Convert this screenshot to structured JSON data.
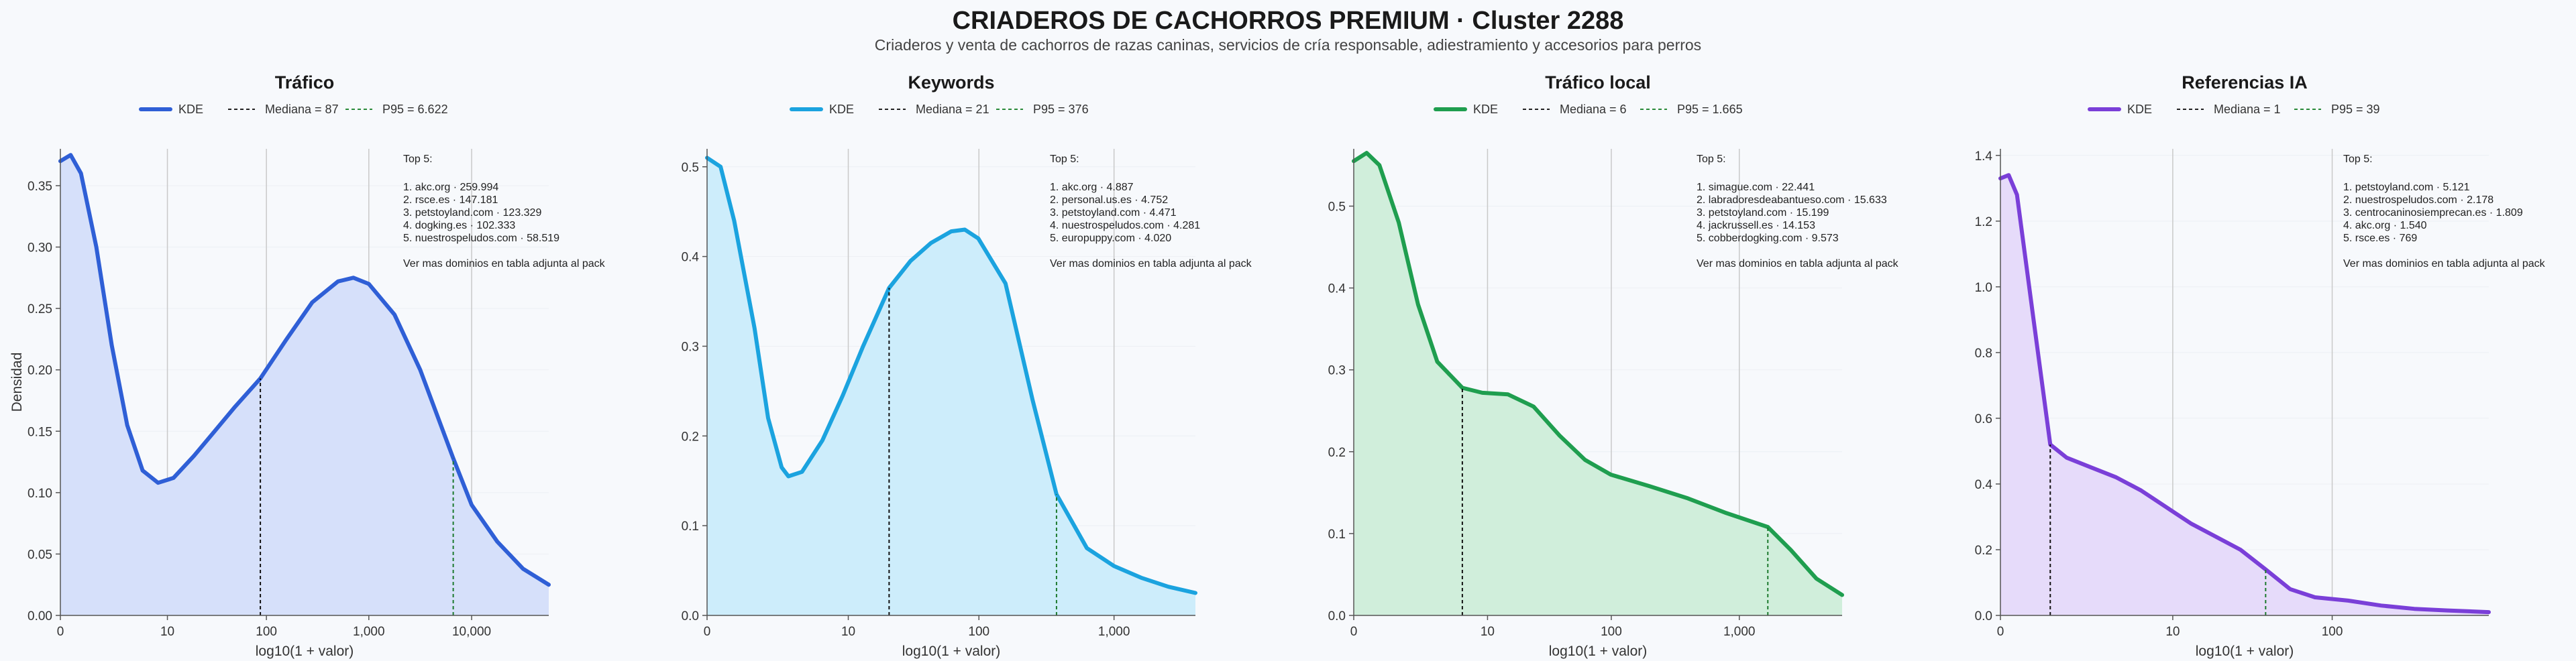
{
  "header": {
    "title": "CRIADEROS DE CACHORROS PREMIUM · Cluster 2288",
    "subtitle": "Criaderos y venta de cachorros de razas caninas, servicios de cría responsable, adiestramiento y accesorios para perros"
  },
  "legend": {
    "kde": "KDE"
  },
  "top_label": "Top 5:",
  "footer_note": "Ver mas dominios en tabla adjunta al pack",
  "chart_data": [
    {
      "type": "area",
      "title": "Tráfico",
      "xlabel": "log10(1 + valor)",
      "ylabel": "Densidad",
      "color": "#2f5fd6",
      "fill": "#d6e0fa",
      "xlim": [
        0,
        4.75
      ],
      "ylim": [
        0,
        0.38
      ],
      "xticks": [
        {
          "v": 0,
          "label": "0"
        },
        {
          "v": 1.041,
          "label": "10"
        },
        {
          "v": 2.004,
          "label": "100"
        },
        {
          "v": 3.0,
          "label": "1,000"
        },
        {
          "v": 4.0,
          "label": "10,000"
        }
      ],
      "yticks": [
        0,
        0.05,
        0.1,
        0.15,
        0.2,
        0.25,
        0.3,
        0.35
      ],
      "ytick_labels": [
        "0.00",
        "0.05",
        "0.10",
        "0.15",
        "0.20",
        "0.25",
        "0.30",
        "0.35"
      ],
      "median": {
        "label": "Mediana = 87",
        "x": 1.945
      },
      "p95": {
        "label": "P95 = 6.622",
        "x": 3.821
      },
      "curve": [
        [
          0,
          0.37
        ],
        [
          0.1,
          0.375
        ],
        [
          0.2,
          0.36
        ],
        [
          0.35,
          0.3
        ],
        [
          0.5,
          0.22
        ],
        [
          0.65,
          0.155
        ],
        [
          0.8,
          0.118
        ],
        [
          0.95,
          0.108
        ],
        [
          1.1,
          0.112
        ],
        [
          1.3,
          0.13
        ],
        [
          1.5,
          0.15
        ],
        [
          1.7,
          0.17
        ],
        [
          1.945,
          0.193
        ],
        [
          2.2,
          0.225
        ],
        [
          2.45,
          0.255
        ],
        [
          2.7,
          0.272
        ],
        [
          2.85,
          0.275
        ],
        [
          3.0,
          0.27
        ],
        [
          3.25,
          0.245
        ],
        [
          3.5,
          0.2
        ],
        [
          3.821,
          0.128
        ],
        [
          4.0,
          0.09
        ],
        [
          4.25,
          0.06
        ],
        [
          4.5,
          0.038
        ],
        [
          4.75,
          0.025
        ]
      ],
      "top5": [
        "1. akc.org · 259.994",
        "2. rsce.es · 147.181",
        "3. petstoyland.com · 123.329",
        "4. dogking.es · 102.333",
        "5. nuestrospeludos.com · 58.519"
      ]
    },
    {
      "type": "area",
      "title": "Keywords",
      "xlabel": "log10(1 + valor)",
      "ylabel": "",
      "color": "#1ba3df",
      "fill": "#cdedfb",
      "xlim": [
        0,
        3.6
      ],
      "ylim": [
        0,
        0.52
      ],
      "xticks": [
        {
          "v": 0,
          "label": "0"
        },
        {
          "v": 1.041,
          "label": "10"
        },
        {
          "v": 2.004,
          "label": "100"
        },
        {
          "v": 3.0,
          "label": "1,000"
        }
      ],
      "yticks": [
        0,
        0.1,
        0.2,
        0.3,
        0.4,
        0.5
      ],
      "ytick_labels": [
        "0.0",
        "0.1",
        "0.2",
        "0.3",
        "0.4",
        "0.5"
      ],
      "median": {
        "label": "Mediana = 21",
        "x": 1.342
      },
      "p95": {
        "label": "P95 = 376",
        "x": 2.576
      },
      "curve": [
        [
          0,
          0.51
        ],
        [
          0.1,
          0.5
        ],
        [
          0.2,
          0.44
        ],
        [
          0.35,
          0.32
        ],
        [
          0.45,
          0.22
        ],
        [
          0.55,
          0.165
        ],
        [
          0.6,
          0.155
        ],
        [
          0.7,
          0.16
        ],
        [
          0.85,
          0.195
        ],
        [
          1.0,
          0.245
        ],
        [
          1.15,
          0.3
        ],
        [
          1.342,
          0.365
        ],
        [
          1.5,
          0.395
        ],
        [
          1.65,
          0.415
        ],
        [
          1.8,
          0.428
        ],
        [
          1.9,
          0.43
        ],
        [
          2.0,
          0.42
        ],
        [
          2.2,
          0.37
        ],
        [
          2.4,
          0.24
        ],
        [
          2.576,
          0.135
        ],
        [
          2.8,
          0.075
        ],
        [
          3.0,
          0.055
        ],
        [
          3.2,
          0.042
        ],
        [
          3.4,
          0.032
        ],
        [
          3.6,
          0.025
        ]
      ],
      "top5": [
        "1. akc.org · 4.887",
        "2. personal.us.es · 4.752",
        "3. petstoyland.com · 4.471",
        "4. nuestrospeludos.com · 4.281",
        "5. europuppy.com · 4.020"
      ]
    },
    {
      "type": "area",
      "title": "Tráfico local",
      "xlabel": "log10(1 + valor)",
      "ylabel": "",
      "color": "#1f9e4f",
      "fill": "#d0eedb",
      "xlim": [
        0,
        3.8
      ],
      "ylim": [
        0,
        0.57
      ],
      "xticks": [
        {
          "v": 0,
          "label": "0"
        },
        {
          "v": 1.041,
          "label": "10"
        },
        {
          "v": 2.004,
          "label": "100"
        },
        {
          "v": 3.0,
          "label": "1,000"
        }
      ],
      "yticks": [
        0,
        0.1,
        0.2,
        0.3,
        0.4,
        0.5
      ],
      "ytick_labels": [
        "0.0",
        "0.1",
        "0.2",
        "0.3",
        "0.4",
        "0.5"
      ],
      "median": {
        "label": "Mediana = 6",
        "x": 0.845
      },
      "p95": {
        "label": "P95 = 1.665",
        "x": 3.222
      },
      "curve": [
        [
          0,
          0.555
        ],
        [
          0.1,
          0.565
        ],
        [
          0.2,
          0.55
        ],
        [
          0.35,
          0.48
        ],
        [
          0.5,
          0.38
        ],
        [
          0.65,
          0.31
        ],
        [
          0.845,
          0.278
        ],
        [
          1.0,
          0.272
        ],
        [
          1.2,
          0.27
        ],
        [
          1.4,
          0.255
        ],
        [
          1.6,
          0.22
        ],
        [
          1.8,
          0.19
        ],
        [
          2.0,
          0.172
        ],
        [
          2.3,
          0.158
        ],
        [
          2.6,
          0.143
        ],
        [
          2.9,
          0.125
        ],
        [
          3.222,
          0.108
        ],
        [
          3.4,
          0.08
        ],
        [
          3.6,
          0.045
        ],
        [
          3.8,
          0.025
        ]
      ],
      "top5": [
        "1. simague.com · 22.441",
        "2. labradoresdeabantueso.com · 15.633",
        "3. petstoyland.com · 15.199",
        "4. jackrussell.es · 14.153",
        "5. cobberdogking.com · 9.573"
      ]
    },
    {
      "type": "area",
      "title": "Referencias IA",
      "xlabel": "log10(1 + valor)",
      "ylabel": "",
      "color": "#7a3fd8",
      "fill": "#e6dbfa",
      "xlim": [
        0,
        2.95
      ],
      "ylim": [
        0,
        1.42
      ],
      "xticks": [
        {
          "v": 0,
          "label": "0"
        },
        {
          "v": 1.041,
          "label": "10"
        },
        {
          "v": 2.004,
          "label": "100"
        }
      ],
      "yticks": [
        0,
        0.2,
        0.4,
        0.6,
        0.8,
        1.0,
        1.2,
        1.4
      ],
      "ytick_labels": [
        "0.0",
        "0.2",
        "0.4",
        "0.6",
        "0.8",
        "1.0",
        "1.2",
        "1.4"
      ],
      "median": {
        "label": "Mediana = 1",
        "x": 0.301
      },
      "p95": {
        "label": "P95 = 39",
        "x": 1.602
      },
      "curve": [
        [
          0,
          1.33
        ],
        [
          0.05,
          1.34
        ],
        [
          0.1,
          1.28
        ],
        [
          0.2,
          0.9
        ],
        [
          0.301,
          0.52
        ],
        [
          0.4,
          0.48
        ],
        [
          0.55,
          0.45
        ],
        [
          0.7,
          0.42
        ],
        [
          0.85,
          0.38
        ],
        [
          1.0,
          0.33
        ],
        [
          1.15,
          0.28
        ],
        [
          1.3,
          0.24
        ],
        [
          1.45,
          0.2
        ],
        [
          1.602,
          0.14
        ],
        [
          1.75,
          0.08
        ],
        [
          1.9,
          0.055
        ],
        [
          2.1,
          0.045
        ],
        [
          2.3,
          0.03
        ],
        [
          2.5,
          0.02
        ],
        [
          2.7,
          0.015
        ],
        [
          2.95,
          0.01
        ]
      ],
      "top5": [
        "1. petstoyland.com · 5.121",
        "2. nuestrospeludos.com · 2.178",
        "3. centrocaninosiemprecan.es · 1.809",
        "4. akc.org · 1.540",
        "5. rsce.es · 769"
      ]
    }
  ]
}
